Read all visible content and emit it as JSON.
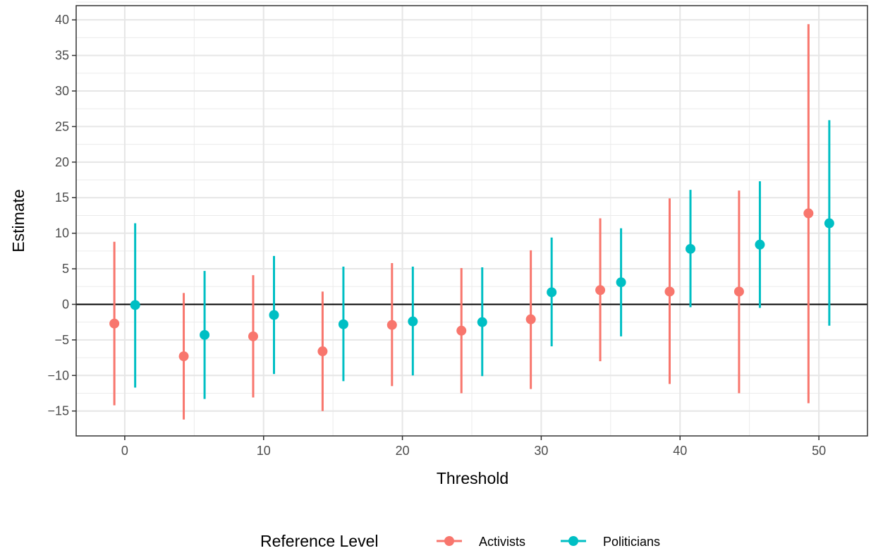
{
  "chart_data": {
    "type": "scatter",
    "title": "",
    "xlabel": "Threshold",
    "ylabel": "Estimate",
    "xlim": [
      -3.5,
      53.5
    ],
    "ylim": [
      -18.5,
      42
    ],
    "x_ticks": [
      0,
      10,
      20,
      30,
      40,
      50
    ],
    "y_ticks": [
      -15,
      -10,
      -5,
      0,
      5,
      10,
      15,
      20,
      25,
      30,
      35,
      40
    ],
    "x_tick_labels": [
      "0",
      "10",
      "20",
      "30",
      "40",
      "50"
    ],
    "y_tick_labels": [
      "−15",
      "−10",
      "−5",
      "0",
      "5",
      "10",
      "15",
      "20",
      "25",
      "30",
      "35",
      "40"
    ],
    "reference_line_y": 0,
    "grid": true,
    "legend": {
      "title": "Reference Level",
      "placement": "bottom"
    },
    "series": [
      {
        "name": "Activists",
        "color": "#F8766D",
        "points": [
          {
            "x": 0,
            "estimate": -2.7,
            "lower": -14.2,
            "upper": 8.8
          },
          {
            "x": 5,
            "estimate": -7.3,
            "lower": -16.2,
            "upper": 1.6
          },
          {
            "x": 10,
            "estimate": -4.5,
            "lower": -13.1,
            "upper": 4.1
          },
          {
            "x": 15,
            "estimate": -6.6,
            "lower": -15.0,
            "upper": 1.8
          },
          {
            "x": 20,
            "estimate": -2.9,
            "lower": -11.5,
            "upper": 5.8
          },
          {
            "x": 25,
            "estimate": -3.7,
            "lower": -12.5,
            "upper": 5.1
          },
          {
            "x": 30,
            "estimate": -2.1,
            "lower": -11.9,
            "upper": 7.6
          },
          {
            "x": 35,
            "estimate": 2.0,
            "lower": -8.0,
            "upper": 12.1
          },
          {
            "x": 40,
            "estimate": 1.8,
            "lower": -11.2,
            "upper": 14.9
          },
          {
            "x": 45,
            "estimate": 1.8,
            "lower": -12.5,
            "upper": 16.0
          },
          {
            "x": 50,
            "estimate": 12.8,
            "lower": -13.9,
            "upper": 39.4
          }
        ]
      },
      {
        "name": "Politicians",
        "color": "#00BFC4",
        "points": [
          {
            "x": 0,
            "estimate": -0.1,
            "lower": -11.7,
            "upper": 11.4
          },
          {
            "x": 5,
            "estimate": -4.3,
            "lower": -13.3,
            "upper": 4.7
          },
          {
            "x": 10,
            "estimate": -1.5,
            "lower": -9.8,
            "upper": 6.8
          },
          {
            "x": 15,
            "estimate": -2.8,
            "lower": -10.8,
            "upper": 5.3
          },
          {
            "x": 20,
            "estimate": -2.4,
            "lower": -10.0,
            "upper": 5.3
          },
          {
            "x": 25,
            "estimate": -2.5,
            "lower": -10.1,
            "upper": 5.2
          },
          {
            "x": 30,
            "estimate": 1.7,
            "lower": -5.9,
            "upper": 9.4
          },
          {
            "x": 35,
            "estimate": 3.1,
            "lower": -4.5,
            "upper": 10.7
          },
          {
            "x": 40,
            "estimate": 7.8,
            "lower": -0.4,
            "upper": 16.1
          },
          {
            "x": 45,
            "estimate": 8.4,
            "lower": -0.5,
            "upper": 17.3
          },
          {
            "x": 50,
            "estimate": 11.4,
            "lower": -3.0,
            "upper": 25.9
          }
        ]
      }
    ]
  }
}
